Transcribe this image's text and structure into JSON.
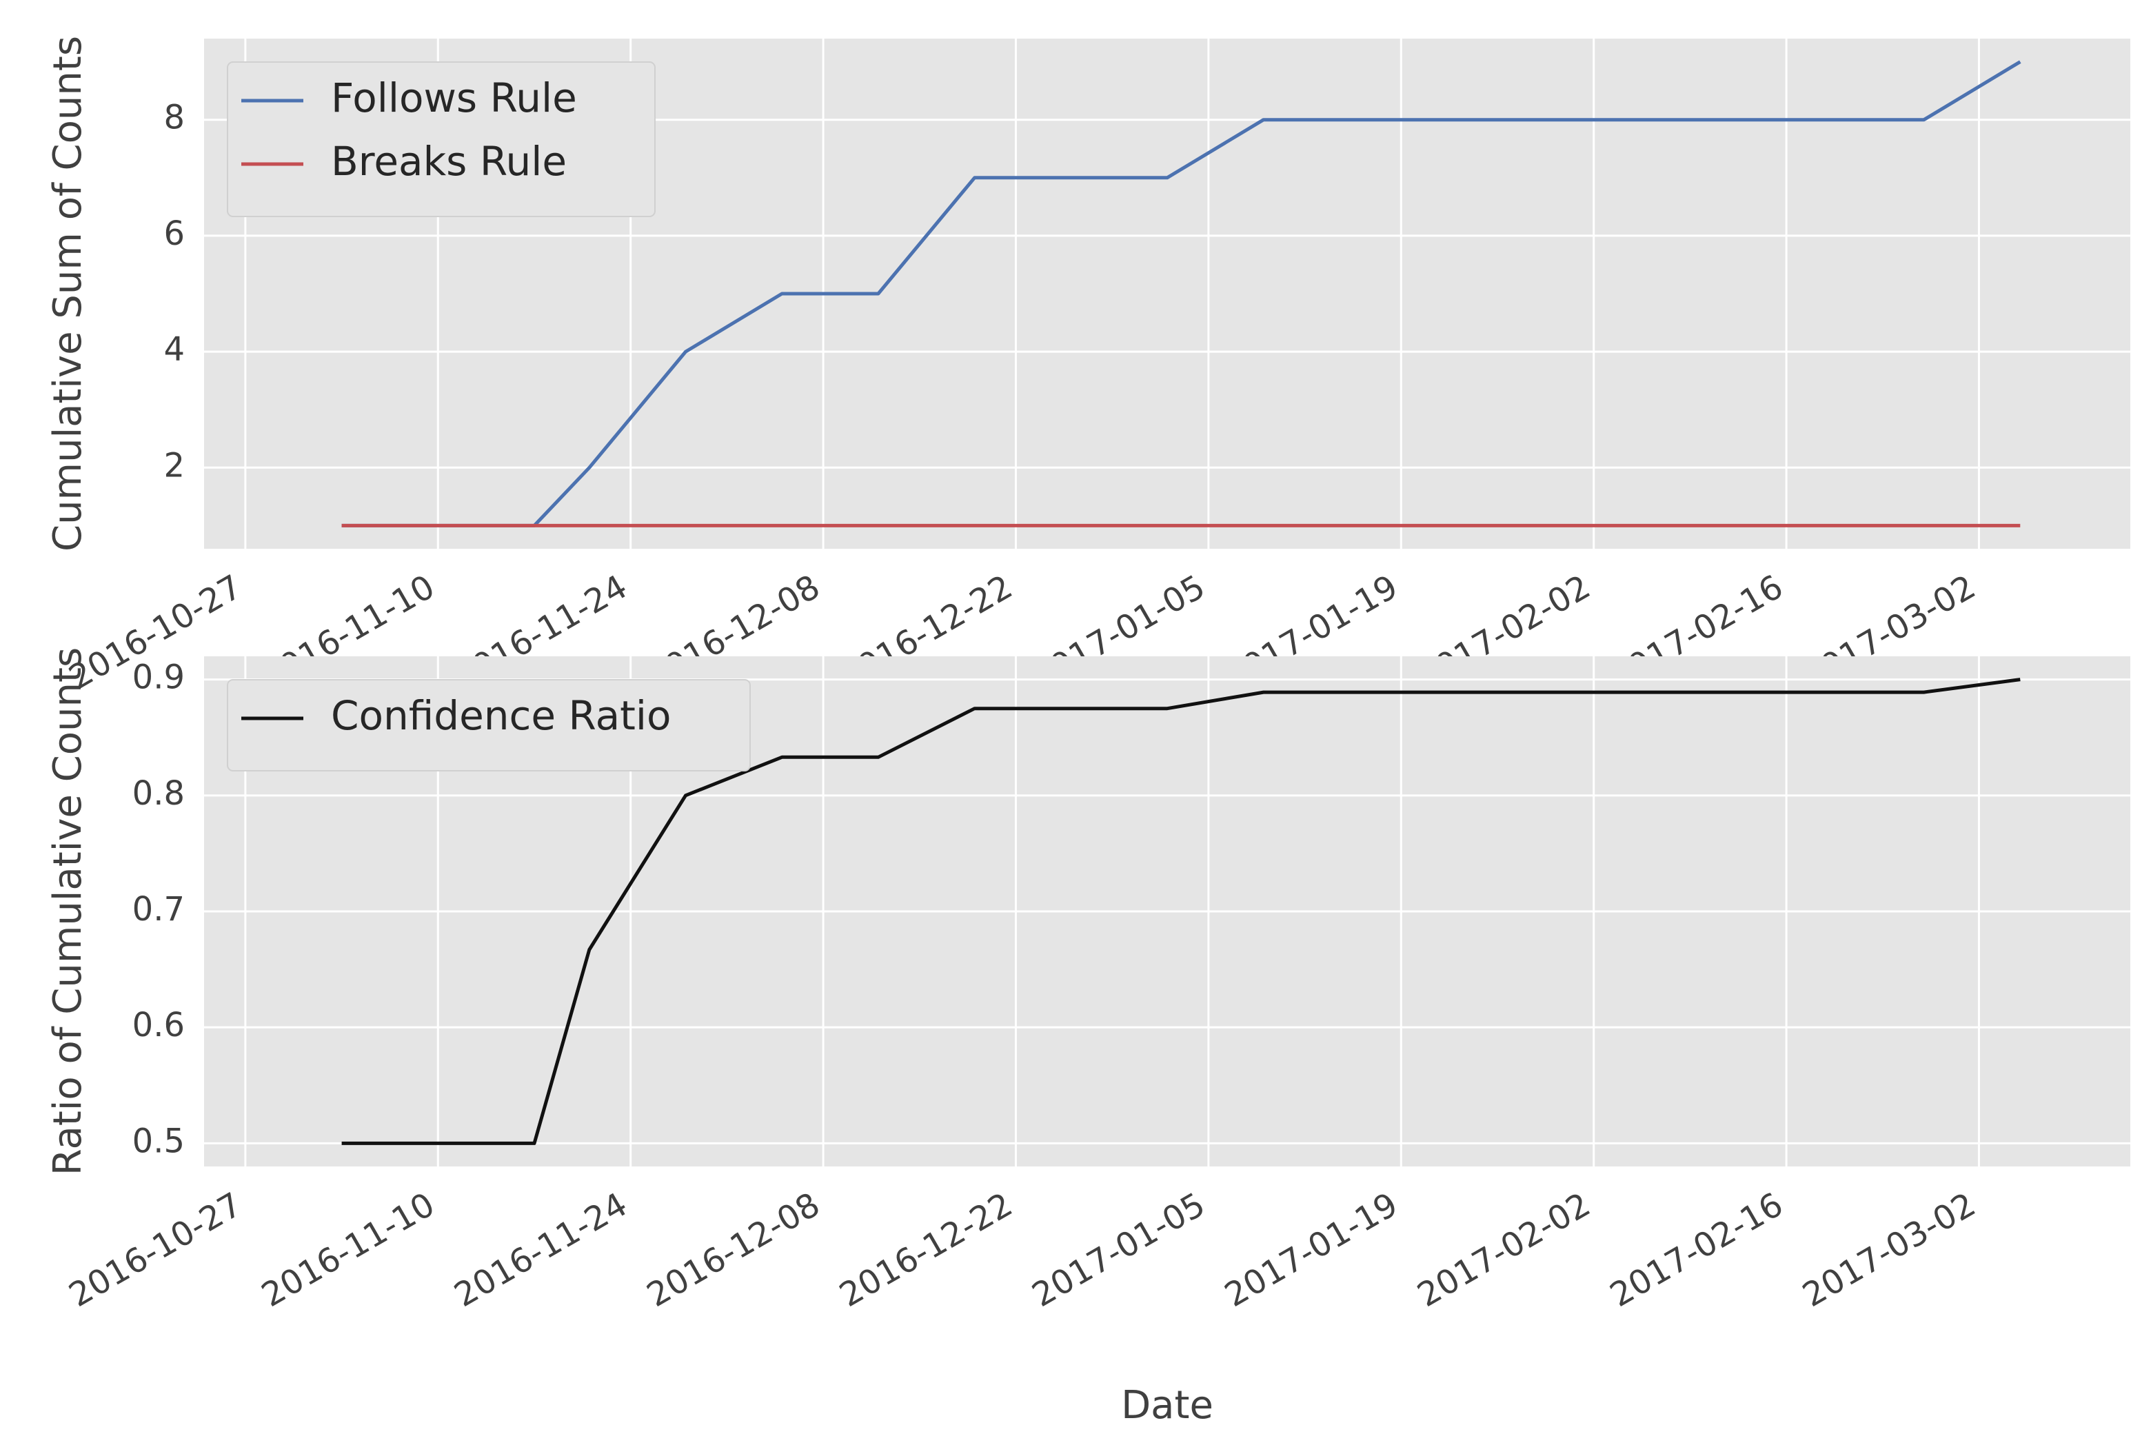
{
  "chart_data": [
    {
      "type": "line",
      "title": "",
      "xlabel": "",
      "ylabel": "Cumulative Sum of Counts",
      "x": [
        "2016-11-03",
        "2016-11-10",
        "2016-11-17",
        "2016-11-21",
        "2016-11-28",
        "2016-12-05",
        "2016-12-12",
        "2016-12-19",
        "2017-01-02",
        "2017-01-09",
        "2017-02-26",
        "2017-03-05"
      ],
      "series": [
        {
          "name": "Follows Rule",
          "color": "#4c72b0",
          "values": [
            1,
            1,
            1,
            2,
            4,
            5,
            5,
            7,
            7,
            8,
            8,
            9
          ]
        },
        {
          "name": "Breaks Rule",
          "color": "#c44e52",
          "values": [
            1,
            1,
            1,
            1,
            1,
            1,
            1,
            1,
            1,
            1,
            1,
            1
          ]
        }
      ],
      "xlim": [
        "2016-10-24",
        "2017-03-13"
      ],
      "ylim": [
        0.6,
        9.4
      ],
      "yticks": [
        2,
        4,
        6,
        8
      ],
      "xticks": [
        "2016-10-27",
        "2016-11-10",
        "2016-11-24",
        "2016-12-08",
        "2016-12-22",
        "2017-01-05",
        "2017-01-19",
        "2017-02-02",
        "2017-02-16",
        "2017-03-02"
      ],
      "grid": true,
      "legend_position": "upper left"
    },
    {
      "type": "line",
      "title": "",
      "xlabel": "Date",
      "ylabel": "Ratio of Cumulative Counts",
      "x": [
        "2016-11-03",
        "2016-11-10",
        "2016-11-17",
        "2016-11-21",
        "2016-11-28",
        "2016-12-05",
        "2016-12-12",
        "2016-12-19",
        "2017-01-02",
        "2017-01-09",
        "2017-02-26",
        "2017-03-05"
      ],
      "series": [
        {
          "name": "Confidence Ratio",
          "color": "#111111",
          "values": [
            0.5,
            0.5,
            0.5,
            0.667,
            0.8,
            0.833,
            0.833,
            0.875,
            0.875,
            0.889,
            0.889,
            0.9
          ]
        }
      ],
      "xlim": [
        "2016-10-24",
        "2017-03-13"
      ],
      "ylim": [
        0.48,
        0.92
      ],
      "yticks": [
        0.5,
        0.6,
        0.7,
        0.8,
        0.9
      ],
      "xticks": [
        "2016-10-27",
        "2016-11-10",
        "2016-11-24",
        "2016-12-08",
        "2016-12-22",
        "2017-01-05",
        "2017-01-19",
        "2017-02-02",
        "2017-02-16",
        "2017-03-02"
      ],
      "grid": true,
      "legend_position": "upper left"
    }
  ]
}
